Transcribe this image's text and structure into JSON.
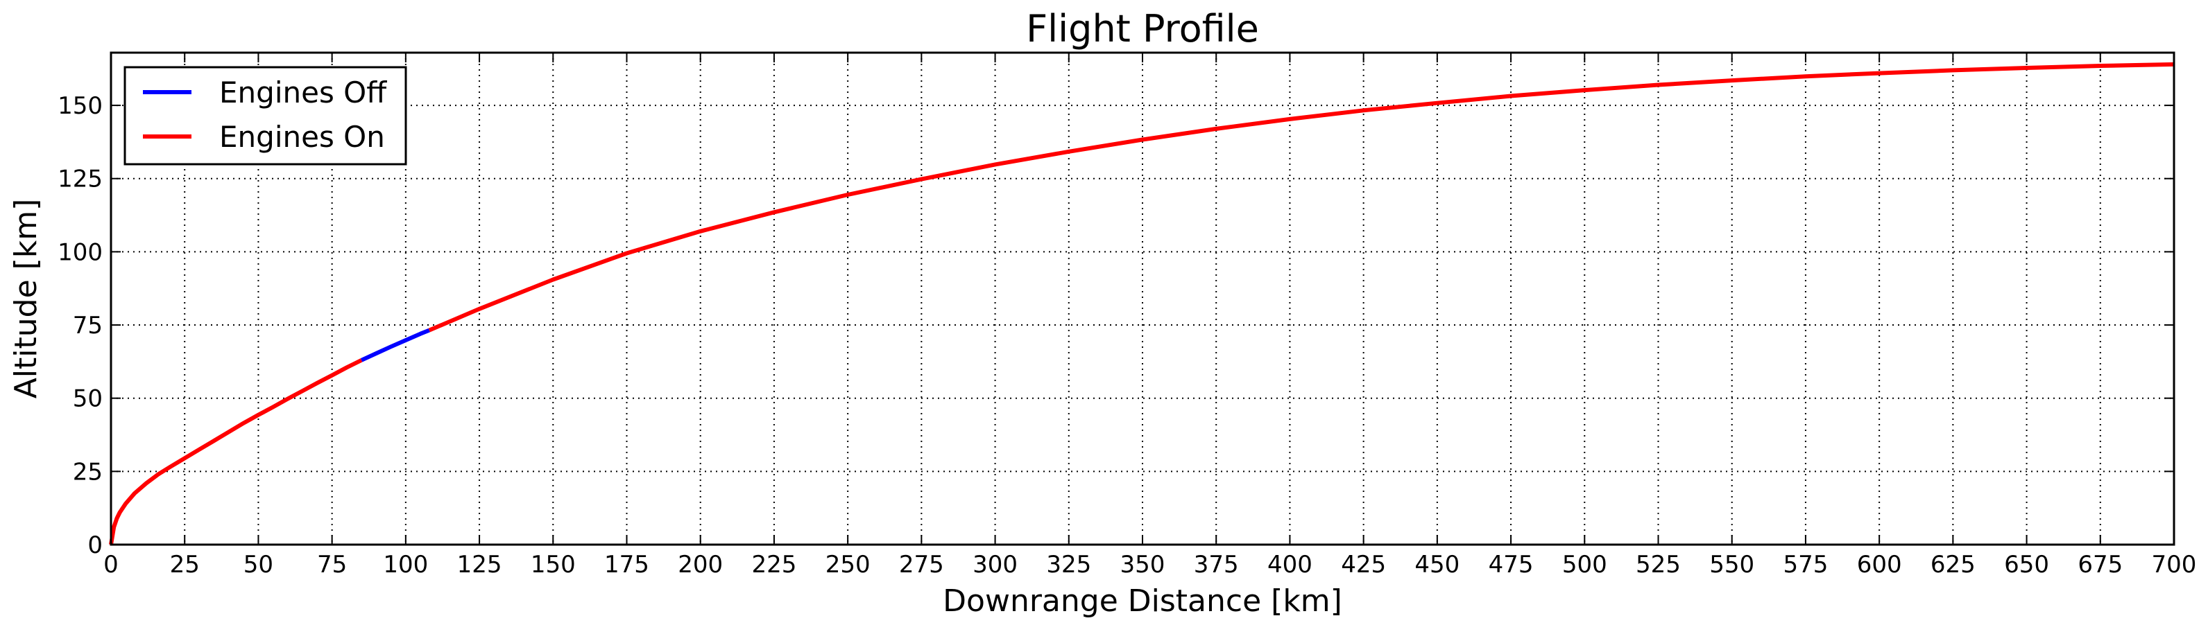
{
  "chart_data": {
    "type": "line",
    "title": "Flight Profile",
    "xlabel": "Downrange Distance [km]",
    "ylabel": "Altitude [km]",
    "xlim": [
      0,
      700
    ],
    "ylim": [
      0,
      168
    ],
    "x_ticks": [
      0,
      25,
      50,
      75,
      100,
      125,
      150,
      175,
      200,
      225,
      250,
      275,
      300,
      325,
      350,
      375,
      400,
      425,
      450,
      475,
      500,
      525,
      550,
      575,
      600,
      625,
      650,
      675,
      700
    ],
    "y_ticks": [
      0,
      25,
      50,
      75,
      100,
      125,
      150
    ],
    "grid": true,
    "legend_position": "top-left",
    "series": [
      {
        "name": "Engines Off",
        "color": "#0000ff",
        "x": [
          85,
          90,
          95,
          100,
          105,
          108
        ],
        "y": [
          63,
          65.3,
          67.6,
          69.8,
          72,
          73.2
        ]
      },
      {
        "name": "Engines On",
        "color": "#ff0000",
        "segments": [
          {
            "x": [
              0,
              1,
              2,
              3,
              5,
              8,
              12,
              16,
              20,
              25,
              30,
              35,
              40,
              45,
              50,
              55,
              60,
              65,
              70,
              75,
              80,
              85
            ],
            "y": [
              0,
              6,
              9,
              11,
              14,
              17.5,
              21,
              24,
              26.5,
              29.5,
              32.5,
              35.5,
              38.5,
              41.5,
              44.3,
              47,
              49.8,
              52.5,
              55.2,
              57.8,
              60.5,
              63
            ]
          },
          {
            "x": [
              108,
              125,
              150,
              175,
              200,
              225,
              250,
              275,
              300,
              325,
              350,
              375,
              400,
              425,
              450,
              475,
              500,
              525,
              550,
              575,
              600,
              625,
              650,
              675,
              700
            ],
            "y": [
              73.2,
              80.5,
              90.5,
              99.5,
              107,
              113.5,
              119.5,
              124.8,
              129.8,
              134.2,
              138.3,
              142,
              145.3,
              148.3,
              150.8,
              153.2,
              155.2,
              157,
              158.5,
              159.9,
              161,
              162,
              162.8,
              163.5,
              164
            ]
          }
        ]
      }
    ]
  }
}
